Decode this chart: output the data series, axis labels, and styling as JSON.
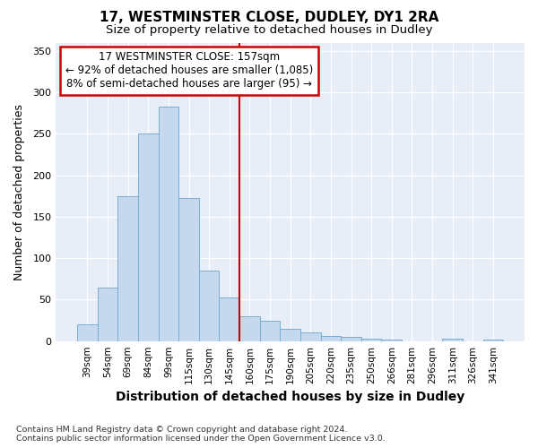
{
  "title1": "17, WESTMINSTER CLOSE, DUDLEY, DY1 2RA",
  "title2": "Size of property relative to detached houses in Dudley",
  "xlabel": "Distribution of detached houses by size in Dudley",
  "ylabel": "Number of detached properties",
  "categories": [
    "39sqm",
    "54sqm",
    "69sqm",
    "84sqm",
    "99sqm",
    "115sqm",
    "130sqm",
    "145sqm",
    "160sqm",
    "175sqm",
    "190sqm",
    "205sqm",
    "220sqm",
    "235sqm",
    "250sqm",
    "266sqm",
    "281sqm",
    "296sqm",
    "311sqm",
    "326sqm",
    "341sqm"
  ],
  "values": [
    20,
    65,
    175,
    250,
    283,
    172,
    85,
    53,
    30,
    25,
    15,
    10,
    6,
    5,
    3,
    2,
    0,
    0,
    3,
    0,
    2
  ],
  "bar_color": "#c5d8ee",
  "bar_edge_color": "#7aadd4",
  "vline_color": "#cc0000",
  "vline_x": 7.5,
  "annotation_title": "17 WESTMINSTER CLOSE: 157sqm",
  "annotation_line1": "← 92% of detached houses are smaller (1,085)",
  "annotation_line2": "8% of semi-detached houses are larger (95) →",
  "annotation_box_facecolor": "#ffffff",
  "annotation_box_edgecolor": "#cc0000",
  "ylim": [
    0,
    360
  ],
  "yticks": [
    0,
    50,
    100,
    150,
    200,
    250,
    300,
    350
  ],
  "fig_facecolor": "#ffffff",
  "ax_facecolor": "#e8eef8",
  "grid_color": "#ffffff",
  "footer1": "Contains HM Land Registry data © Crown copyright and database right 2024.",
  "footer2": "Contains public sector information licensed under the Open Government Licence v3.0."
}
